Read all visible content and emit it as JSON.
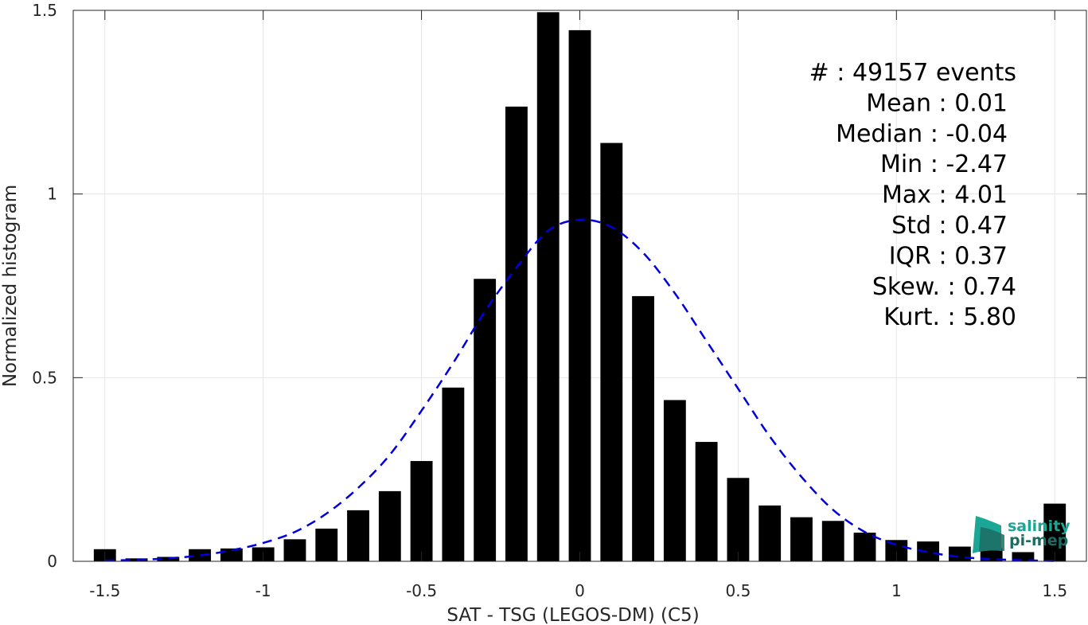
{
  "chart_data": {
    "type": "bar",
    "xlabel": "SAT - TSG (LEGOS-DM) (C5)",
    "ylabel": "Normalized histogram",
    "xlim": [
      -1.6,
      1.6
    ],
    "ylim": [
      0,
      1.5
    ],
    "xticks": [
      -1.5,
      -1,
      -0.5,
      0,
      0.5,
      1,
      1.5
    ],
    "xtick_labels": [
      "-1.5",
      "-1",
      "-0.5",
      "0",
      "0.5",
      "1",
      "1.5"
    ],
    "yticks": [
      0,
      0.5,
      1,
      1.5
    ],
    "ytick_labels": [
      "0",
      "0.5",
      "1",
      "1.5"
    ],
    "grid": true,
    "bar_width": 0.07,
    "bars": {
      "x": [
        -1.5,
        -1.4,
        -1.3,
        -1.2,
        -1.1,
        -1.0,
        -0.9,
        -0.8,
        -0.7,
        -0.6,
        -0.5,
        -0.4,
        -0.3,
        -0.2,
        -0.1,
        0.0,
        0.1,
        0.2,
        0.3,
        0.4,
        0.5,
        0.6,
        0.7,
        0.8,
        0.9,
        1.0,
        1.1,
        1.2,
        1.3,
        1.4,
        1.5
      ],
      "values": [
        0.033,
        0.008,
        0.012,
        0.033,
        0.035,
        0.038,
        0.06,
        0.089,
        0.139,
        0.191,
        0.273,
        0.473,
        0.769,
        1.238,
        1.495,
        1.446,
        1.139,
        0.722,
        0.439,
        0.325,
        0.227,
        0.152,
        0.12,
        0.11,
        0.078,
        0.058,
        0.054,
        0.04,
        0.036,
        0.025,
        0.157
      ],
      "color": "#000000"
    },
    "fit_curve": {
      "style": "dashed",
      "color": "#0000dd",
      "x": [
        -1.5,
        -1.4,
        -1.3,
        -1.2,
        -1.1,
        -1.0,
        -0.9,
        -0.8,
        -0.7,
        -0.6,
        -0.5,
        -0.4,
        -0.3,
        -0.2,
        -0.1,
        0.0,
        0.1,
        0.2,
        0.3,
        0.4,
        0.5,
        0.6,
        0.7,
        0.8,
        0.9,
        1.0,
        1.1,
        1.2,
        1.3,
        1.4,
        1.5
      ],
      "y": [
        0.002,
        0.004,
        0.008,
        0.016,
        0.03,
        0.05,
        0.08,
        0.13,
        0.2,
        0.29,
        0.41,
        0.54,
        0.68,
        0.8,
        0.9,
        0.93,
        0.91,
        0.84,
        0.73,
        0.6,
        0.47,
        0.34,
        0.23,
        0.14,
        0.08,
        0.045,
        0.025,
        0.012,
        0.006,
        0.003,
        0.001
      ]
    }
  },
  "stats": [
    {
      "label": "#  : 49157 events",
      "anchor": "end"
    },
    {
      "label": "Mean : 0.01",
      "anchor": "end"
    },
    {
      "label": "Median : -0.04",
      "anchor": "end"
    },
    {
      "label": "Min : -2.47",
      "anchor": "end"
    },
    {
      "label": "Max : 4.01",
      "anchor": "end"
    },
    {
      "label": "Std : 0.47",
      "anchor": "end"
    },
    {
      "label": "IQR : 0.37",
      "anchor": "end"
    },
    {
      "label": "Skew. : 0.74",
      "anchor": "end"
    },
    {
      "label": "Kurt. : 5.80",
      "anchor": "end"
    }
  ],
  "logo": {
    "line1": "salinity",
    "line2": "pi-mep",
    "color_teal": "#1aa795",
    "color_dark": "#1f6b63"
  }
}
